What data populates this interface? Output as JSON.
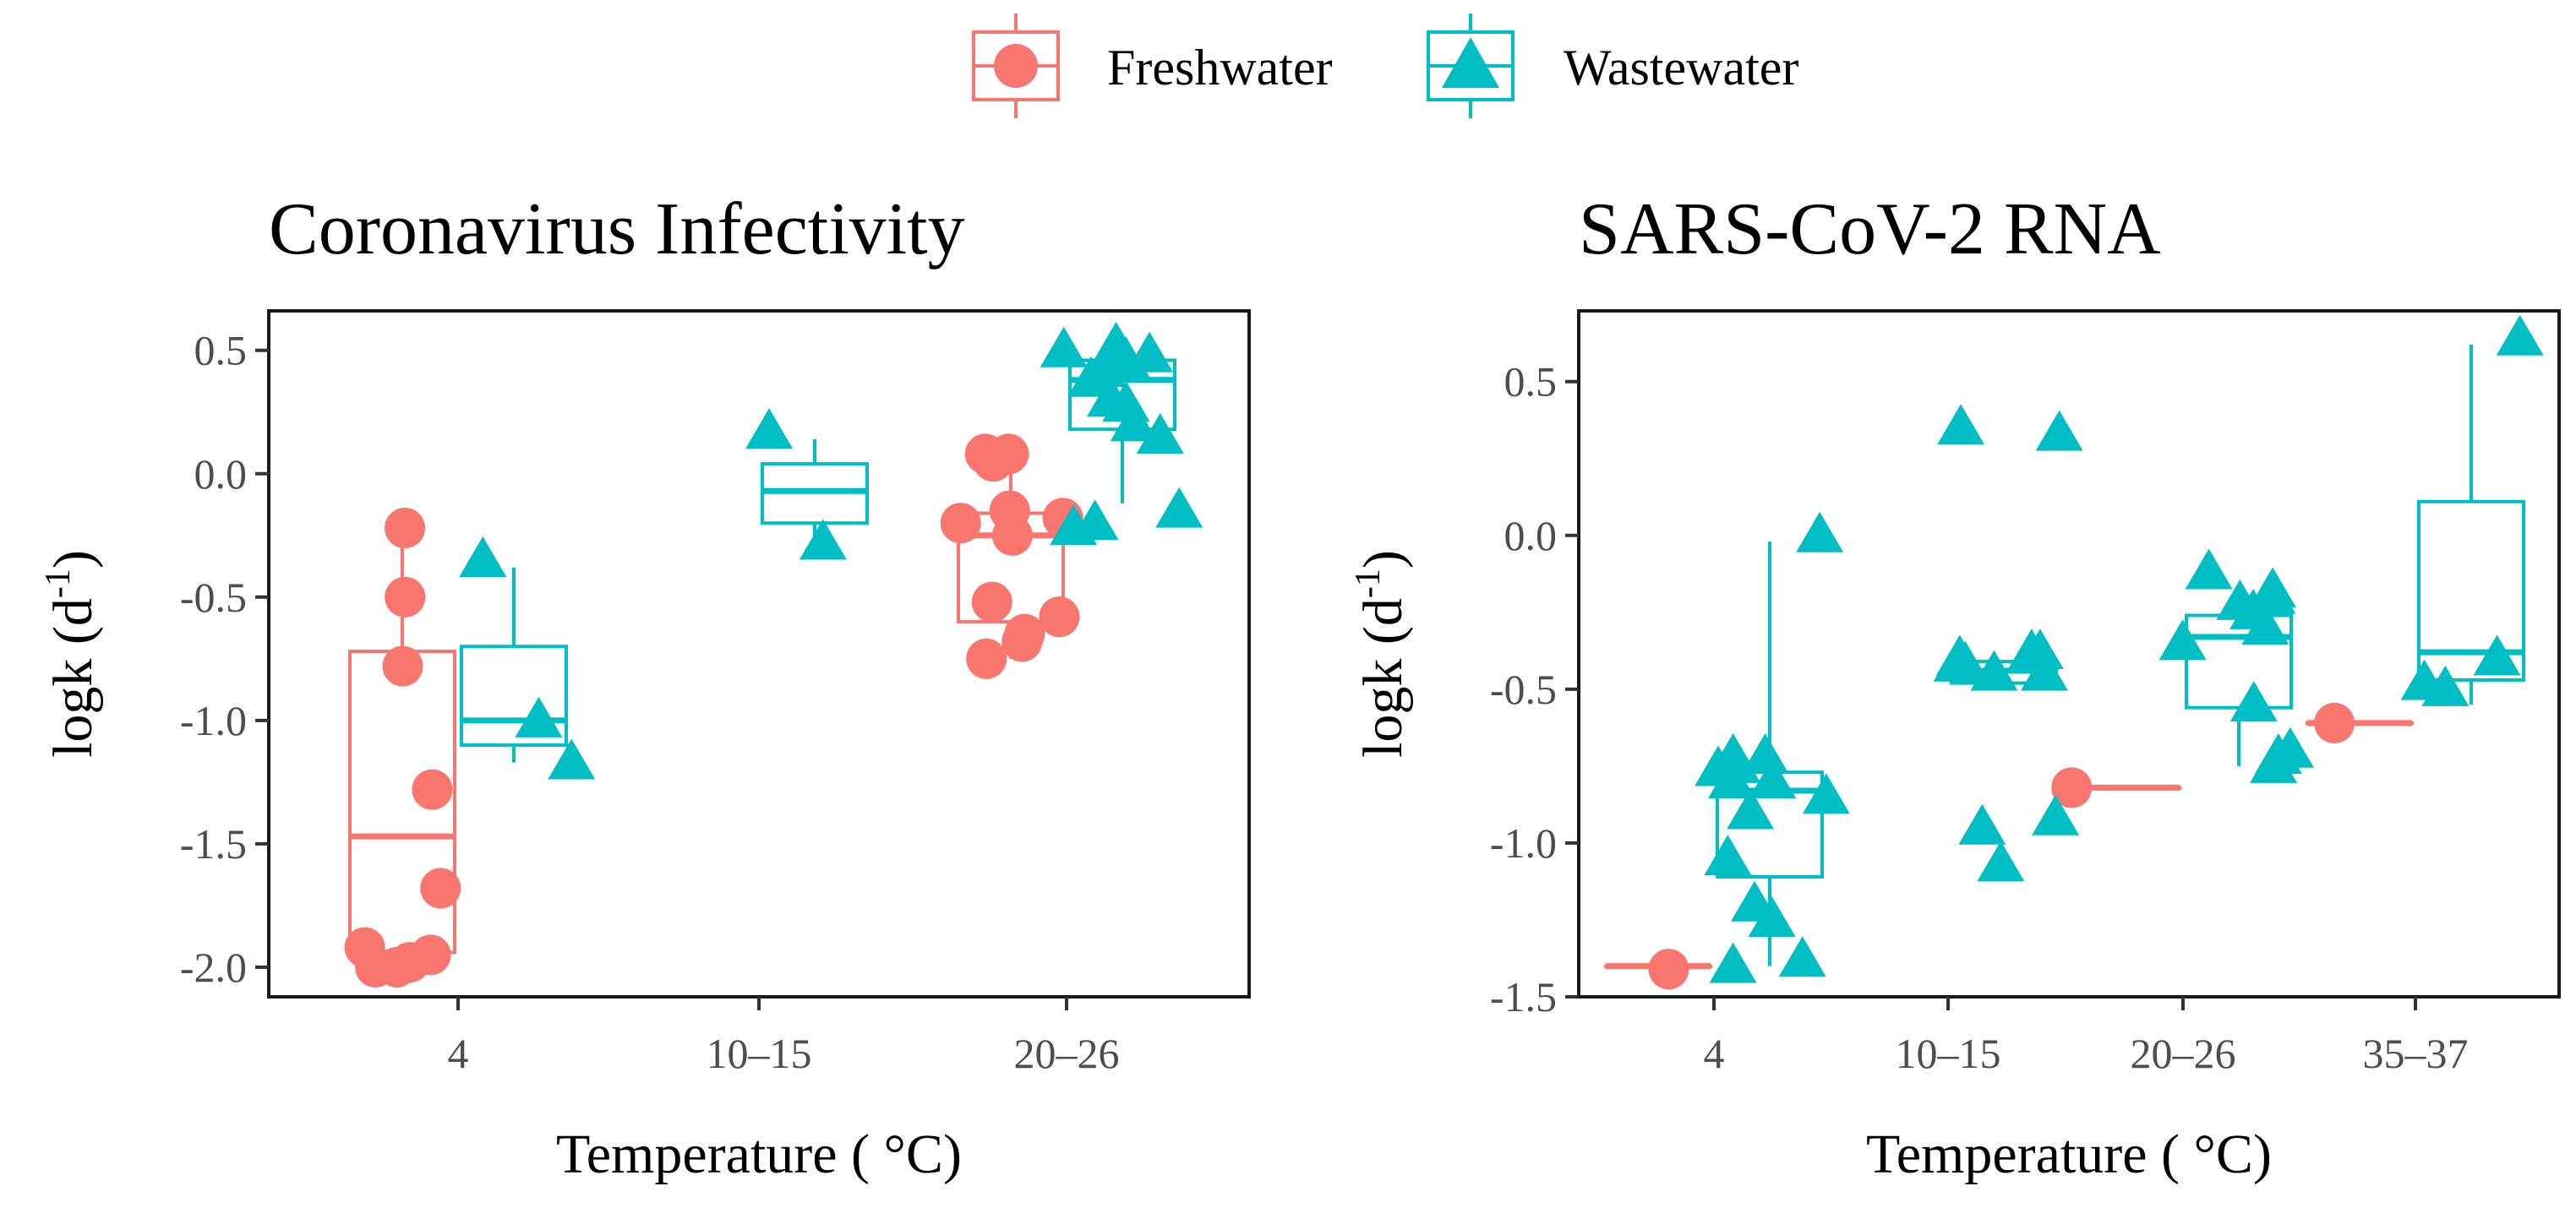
{
  "legend": {
    "items": [
      {
        "label": "Freshwater",
        "color": "#F8766D",
        "shape": "circle"
      },
      {
        "label": "Wastewater",
        "color": "#00BFC4",
        "shape": "triangle"
      }
    ]
  },
  "chart_data": [
    {
      "type": "boxplot",
      "title": "Coronavirus Infectivity",
      "xlabel": "Temperature ( °C)",
      "ylabel": "logk  (d",
      "ylabel_sup": "-1",
      "ylabel_close": ")",
      "categories": [
        "4",
        "10–15",
        "20–26"
      ],
      "ylim": [
        -2.12,
        0.66
      ],
      "yticks": [
        0.5,
        0.0,
        -0.5,
        -1.0,
        -1.5,
        -2.0
      ],
      "ytick_labels": [
        "0.5",
        "0.0",
        "-0.5",
        "-1.0",
        "-1.5",
        "-2.0"
      ],
      "boxes": [
        {
          "group": "Freshwater",
          "category": "4",
          "q1": -1.94,
          "median": -1.47,
          "q3": -0.72,
          "whisker_low": -2.0,
          "whisker_high": -0.22
        },
        {
          "group": "Wastewater",
          "category": "4",
          "q1": -1.1,
          "median": -1.0,
          "q3": -0.7,
          "whisker_low": -1.17,
          "whisker_high": -0.38
        },
        {
          "group": "Wastewater",
          "category": "10–15",
          "q1": -0.2,
          "median": -0.07,
          "q3": 0.04,
          "whisker_low": -0.3,
          "whisker_high": 0.14
        },
        {
          "group": "Freshwater",
          "category": "20–26",
          "q1": -0.6,
          "median": -0.25,
          "q3": -0.16,
          "whisker_low": -0.75,
          "whisker_high": 0.08
        },
        {
          "group": "Wastewater",
          "category": "20–26",
          "q1": 0.18,
          "median": 0.38,
          "q3": 0.46,
          "whisker_low": -0.12,
          "whisker_high": 0.5
        }
      ],
      "points": [
        {
          "group": "Freshwater",
          "category": "4",
          "values": [
            -1.92,
            -1.95,
            -1.98,
            -2.0,
            -2.0,
            -1.68,
            -1.28,
            -0.78,
            -0.5,
            -0.22
          ]
        },
        {
          "group": "Wastewater",
          "category": "4",
          "values": [
            -0.35,
            -1.17,
            -1.0
          ]
        },
        {
          "group": "Wastewater",
          "category": "10–15",
          "values": [
            -0.28,
            0.17
          ]
        },
        {
          "group": "Freshwater",
          "category": "20–26",
          "values": [
            0.08,
            0.05,
            -0.15,
            -0.2,
            -0.58,
            -0.75,
            -0.52,
            -0.65,
            -0.68,
            -0.25,
            0.08,
            -0.18
          ]
        },
        {
          "group": "Wastewater",
          "category": "20–26",
          "values": [
            0.28,
            0.3,
            0.2,
            0.52,
            0.45,
            0.5,
            0.48,
            0.42,
            0.38,
            0.15,
            -0.15,
            -0.2,
            -0.22,
            0.46
          ]
        }
      ]
    },
    {
      "type": "boxplot",
      "title": "SARS-CoV-2 RNA",
      "xlabel": "Temperature ( °C)",
      "ylabel": "logk  (d",
      "ylabel_sup": "-1",
      "ylabel_close": ")",
      "categories": [
        "4",
        "10–15",
        "20–26",
        "35–37"
      ],
      "ylim": [
        -1.5,
        0.73
      ],
      "yticks": [
        0.5,
        0.0,
        -0.5,
        -1.0,
        -1.5
      ],
      "ytick_labels": [
        "0.5",
        "0.0",
        "-0.5",
        "-1.0",
        "-1.5"
      ],
      "boxes": [
        {
          "group": "Freshwater",
          "category": "4",
          "q1": -1.4,
          "median": -1.4,
          "q3": -1.4,
          "whisker_low": -1.4,
          "whisker_high": -1.4
        },
        {
          "group": "Wastewater",
          "category": "4",
          "q1": -1.11,
          "median": -0.83,
          "q3": -0.77,
          "whisker_low": -1.4,
          "whisker_high": -0.02
        },
        {
          "group": "Wastewater",
          "category": "10–15",
          "q1": -0.48,
          "median": -0.44,
          "q3": -0.41,
          "whisker_low": -0.48,
          "whisker_high": -0.41
        },
        {
          "group": "Freshwater",
          "category": "20–26",
          "q1": -0.82,
          "median": -0.82,
          "q3": -0.82,
          "whisker_low": -0.82,
          "whisker_high": -0.82
        },
        {
          "group": "Wastewater",
          "category": "20–26",
          "q1": -0.56,
          "median": -0.33,
          "q3": -0.26,
          "whisker_low": -0.75,
          "whisker_high": -0.16
        },
        {
          "group": "Freshwater",
          "category": "35–37",
          "q1": -0.61,
          "median": -0.61,
          "q3": -0.61,
          "whisker_low": -0.61,
          "whisker_high": -0.61
        },
        {
          "group": "Wastewater",
          "category": "35–37",
          "q1": -0.47,
          "median": -0.38,
          "q3": 0.11,
          "whisker_low": -0.55,
          "whisker_high": 0.62
        }
      ],
      "points": [
        {
          "group": "Freshwater",
          "category": "4",
          "values": [
            -1.41
          ]
        },
        {
          "group": "Freshwater",
          "category": "20–26",
          "values": [
            -0.82
          ]
        },
        {
          "group": "Freshwater",
          "category": "35–37",
          "values": [
            -0.61
          ]
        },
        {
          "group": "Wastewater",
          "category": "4",
          "values": [
            0.0,
            -0.72,
            -0.75,
            -0.8,
            -0.85,
            -0.9,
            -0.72,
            -0.8,
            -0.76,
            -1.25,
            -1.2,
            -1.05,
            -1.38,
            -1.4
          ]
        },
        {
          "group": "Wastewater",
          "category": "10–15",
          "values": [
            0.35,
            0.33,
            -0.38,
            -0.4,
            -0.42,
            -0.45,
            -0.38,
            -0.42,
            -0.45,
            -0.92,
            -0.95,
            -1.07
          ]
        },
        {
          "group": "Wastewater",
          "category": "20–26",
          "values": [
            -0.12,
            -0.18,
            -0.22,
            -0.25,
            -0.3,
            -0.35,
            -0.2,
            -0.55,
            -0.7,
            -0.72,
            -0.75
          ]
        },
        {
          "group": "Wastewater",
          "category": "35–37",
          "values": [
            0.64,
            -0.4,
            -0.48,
            -0.5
          ]
        }
      ]
    }
  ]
}
